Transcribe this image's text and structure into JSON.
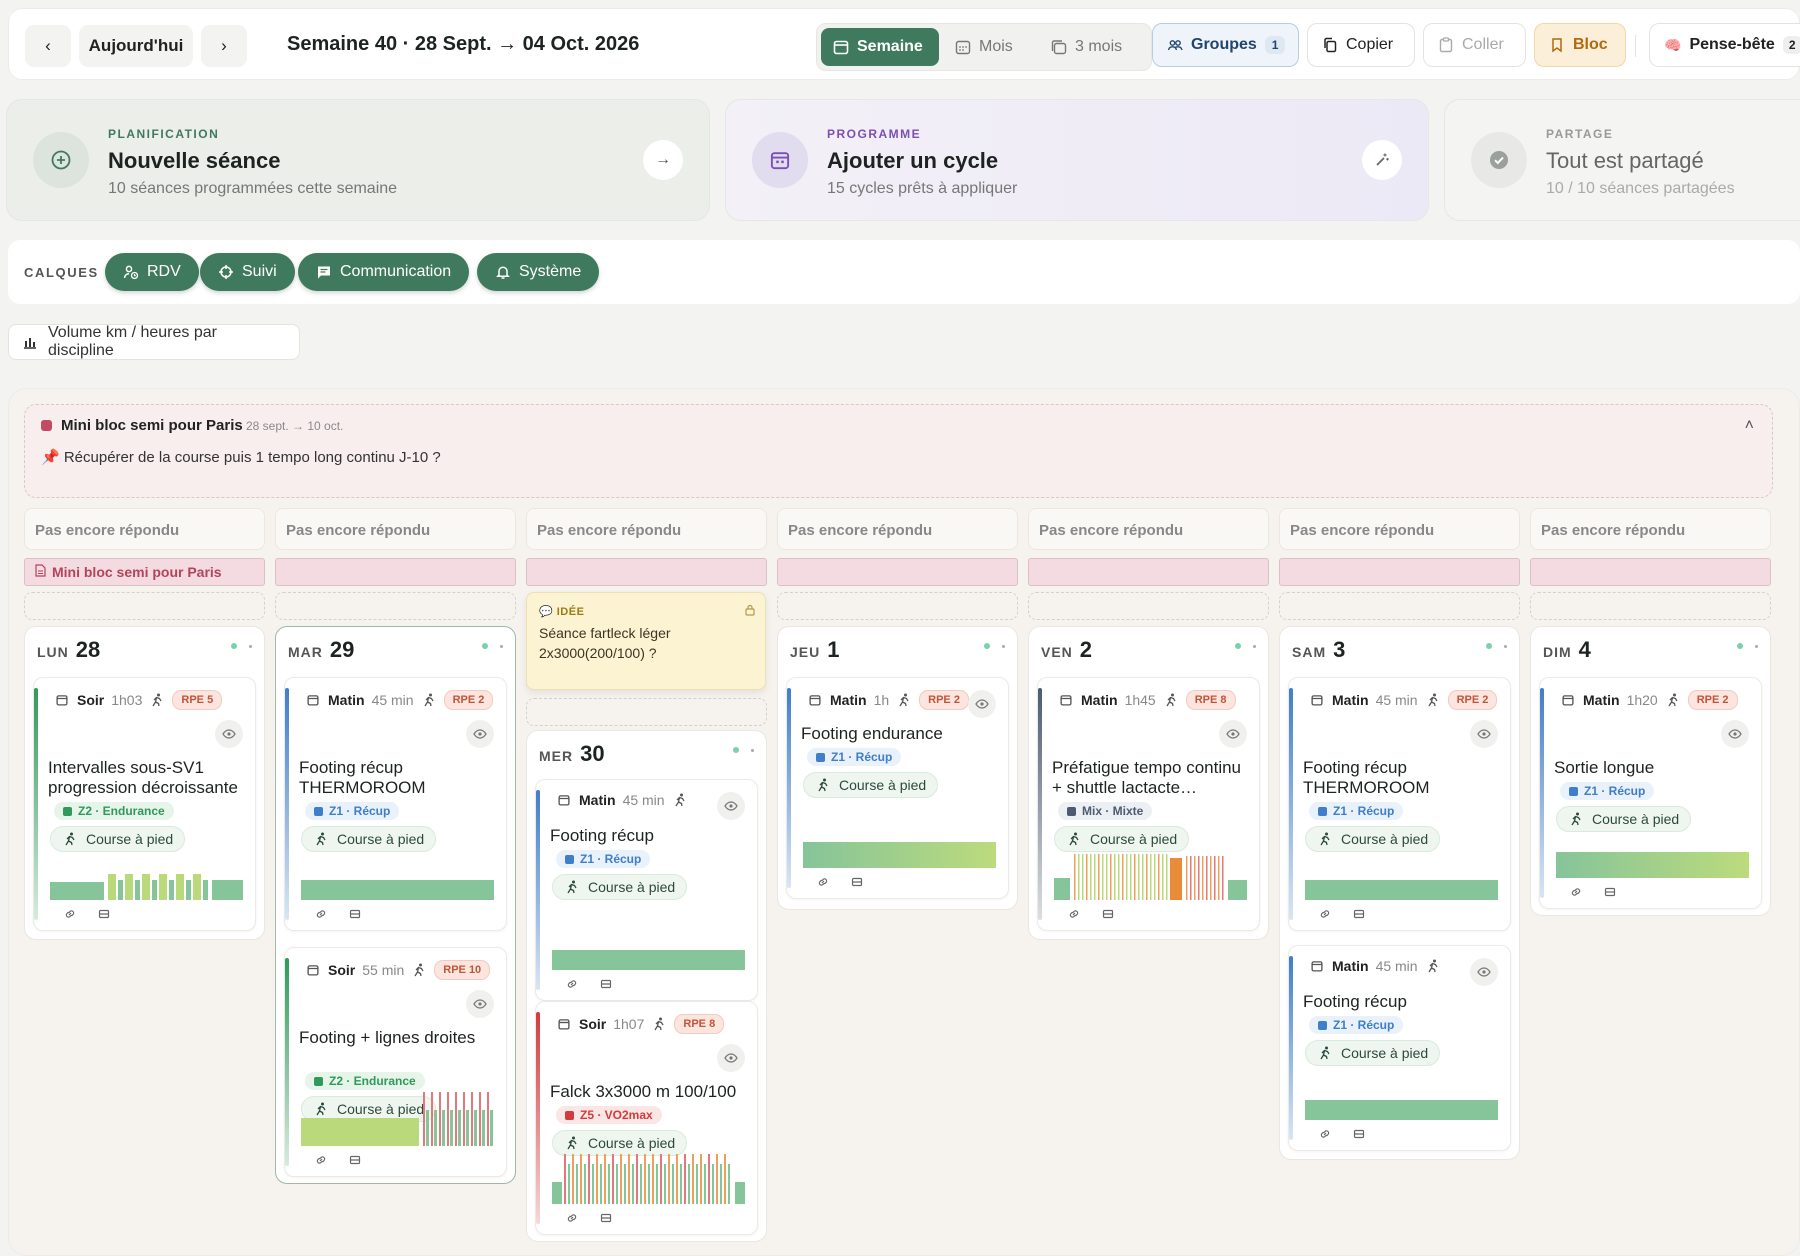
{
  "topbar": {
    "today": "Aujourd'hui",
    "week_title": "Semaine 40 · 28 Sept. → 04 Oct. 2026",
    "views": [
      {
        "label": "Semaine",
        "icon": "calendar-icon",
        "active": true
      },
      {
        "label": "Mois",
        "icon": "calendar-grid-icon",
        "active": false
      },
      {
        "label": "3 mois",
        "icon": "calendar-stack-icon",
        "active": false
      }
    ],
    "groups": {
      "label": "Groupes",
      "count": "1"
    },
    "copy": "Copier",
    "paste": "Coller",
    "bloc": "Bloc",
    "memo": "Pense-bête",
    "memo_count": "2",
    "colors": {
      "accent": "#3f7a5e",
      "bloc_bg": "#fcefd9",
      "groups_bg": "#eef4fa"
    }
  },
  "actions": [
    {
      "kicker": "PLANIFICATION",
      "title": "Nouvelle séance",
      "subtitle": "10 séances programmées cette semaine",
      "icon": "plus-circle-icon",
      "button_icon": "arrow-right-icon",
      "color": "#3f7a5e"
    },
    {
      "kicker": "PROGRAMME",
      "title": "Ajouter un cycle",
      "subtitle": "15 cycles prêts à appliquer",
      "icon": "calendar-icon",
      "button_icon": "magic-wand-icon",
      "color": "#7b4fb4"
    },
    {
      "kicker": "PARTAGE",
      "title": "Tout est partagé",
      "subtitle": "10 / 10 séances partagées",
      "icon": "check-circle-icon",
      "color": "#9aa09c"
    }
  ],
  "layers": {
    "label": "CALQUES",
    "chips": [
      {
        "label": "RDV",
        "icon": "person-clock-icon"
      },
      {
        "label": "Suivi",
        "icon": "target-icon"
      },
      {
        "label": "Communication",
        "icon": "chat-icon"
      },
      {
        "label": "Système",
        "icon": "bell-icon"
      }
    ]
  },
  "volume": {
    "label": "Volume km / heures par discipline",
    "icon": "bar-chart-icon"
  },
  "mini_bloc": {
    "title": "Mini bloc semi pour Paris",
    "dates": "28 sept. → 10 oct.",
    "note": "📌 Récupérer de la course puis 1 tempo long continu J-10 ?"
  },
  "response_label": "Pas encore répondu",
  "bloc_strip_label": "Mini bloc semi pour Paris",
  "idea": {
    "tag": "💬 IDÉE",
    "text": "Séance fartleck léger 2x3000(200/100) ?"
  },
  "sport_label": "Course à pied",
  "zones": {
    "z1": {
      "label": "Z1 · Récup",
      "color": "#3f7ec9",
      "bg": "#e9f1fb"
    },
    "z2": {
      "label": "Z2 · Endurance",
      "color": "#2f9a5a",
      "bg": "#e6f4ea"
    },
    "z5": {
      "label": "Z5 · VO2max",
      "color": "#d23b3b",
      "bg": "#fbe6e6"
    },
    "mix": {
      "label": "Mix · Mixte",
      "color": "#4d5a70",
      "bg": "#eceff4"
    }
  },
  "days": [
    {
      "name": "LUN",
      "num": "28",
      "sessions": [
        {
          "slot": "Soir",
          "dur": "1h03",
          "rpe": "RPE 5",
          "title": "Intervalles sous-SV1 progression décroissante",
          "zone": "z2",
          "bar": "#2f9a5a",
          "chart": "intervals"
        }
      ]
    },
    {
      "name": "MAR",
      "num": "29",
      "sessions": [
        {
          "slot": "Matin",
          "dur": "45 min",
          "rpe": "RPE 2",
          "title": "Footing récup THERMOROOM",
          "zone": "z1",
          "bar": "#3f7ec9",
          "chart": "flat"
        },
        {
          "slot": "Soir",
          "dur": "55 min",
          "rpe": "RPE 10",
          "title": "Footing + lignes droites",
          "zone": "z2",
          "bar": "#2f9a5a",
          "chart": "strides"
        }
      ]
    },
    {
      "name": "MER",
      "num": "30",
      "sessions": [
        {
          "slot": "Matin",
          "dur": "45 min",
          "rpe": "",
          "title": "Footing récup",
          "zone": "z1",
          "bar": "#3f7ec9",
          "chart": "flat"
        },
        {
          "slot": "Soir",
          "dur": "1h07",
          "rpe": "RPE 8",
          "title": "Falck 3x3000 m 100/100",
          "zone": "z5",
          "bar": "#d23b3b",
          "chart": "falck"
        }
      ]
    },
    {
      "name": "JEU",
      "num": "1",
      "sessions": [
        {
          "slot": "Matin",
          "dur": "1h",
          "rpe": "RPE 2",
          "title": "Footing endurance",
          "zone": "z1",
          "bar": "#3f7ec9",
          "chart": "grad"
        }
      ]
    },
    {
      "name": "VEN",
      "num": "2",
      "sessions": [
        {
          "slot": "Matin",
          "dur": "1h45",
          "rpe": "RPE 8",
          "title": "Préfatigue tempo continu + shuttle lactacte…",
          "zone": "mix",
          "bar": "#4d5a70",
          "chart": "mixed"
        }
      ]
    },
    {
      "name": "SAM",
      "num": "3",
      "sessions": [
        {
          "slot": "Matin",
          "dur": "45 min",
          "rpe": "RPE 2",
          "title": "Footing récup THERMOROOM",
          "zone": "z1",
          "bar": "#3f7ec9",
          "chart": "flat"
        },
        {
          "slot": "Matin",
          "dur": "45 min",
          "rpe": "",
          "title": "Footing récup",
          "zone": "z1",
          "bar": "#3f7ec9",
          "chart": "flat"
        }
      ]
    },
    {
      "name": "DIM",
      "num": "4",
      "sessions": [
        {
          "slot": "Matin",
          "dur": "1h20",
          "rpe": "RPE 2",
          "title": "Sortie longue",
          "zone": "z1",
          "bar": "#3f7ec9",
          "chart": "grad"
        }
      ]
    }
  ]
}
